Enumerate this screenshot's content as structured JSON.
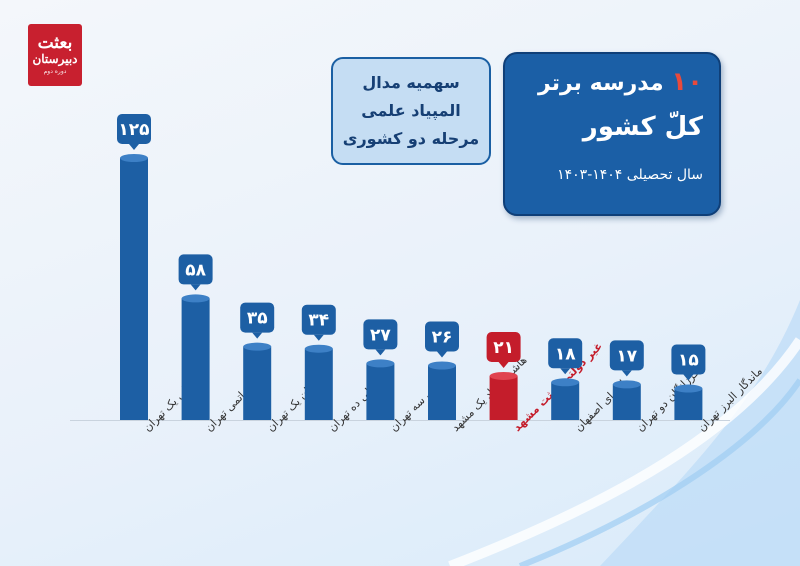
{
  "brand": {
    "logo_line1": "بعثت",
    "logo_line2": "دبیرستان",
    "logo_line3": "دوره دوم"
  },
  "title": {
    "number": "۱۰",
    "line1": "مدرسه برتر",
    "line2": "کلّ کشور",
    "year": "سال تحصیلی ۱۴۰۴-۱۴۰۳"
  },
  "subtitle": {
    "line1": "سهمیه مدال",
    "line2": "المپیاد علمی",
    "line3": "مرحله دو کشوری"
  },
  "colors": {
    "bar": "#1d5fa4",
    "highlight": "#c41d2b",
    "label_highlight": "#c41d2b",
    "label": "#333333"
  },
  "chart_data": {
    "type": "bar",
    "categories": [
      "حلی یک تهران",
      "انرژی اتمی تهران",
      "فرزانگان یک تهران",
      "حلی ده تهران",
      "حلی سه تهران",
      "هاشمی نژاد یک مشهد",
      "غیر دولتی بعثت مشهد",
      "اژه ای اصفهان",
      "فرزانگان دو تهران",
      "ماندگار البرز تهران"
    ],
    "values": [
      125,
      58,
      35,
      34,
      27,
      26,
      21,
      18,
      17,
      15
    ],
    "value_labels": [
      "۱۲۵",
      "۵۸",
      "۳۵",
      "۳۴",
      "۲۷",
      "۲۶",
      "۲۱",
      "۱۸",
      "۱۷",
      "۱۵"
    ],
    "highlight_index": 6,
    "title": "",
    "xlabel": "",
    "ylabel": "",
    "grid": false,
    "legend": "none"
  }
}
